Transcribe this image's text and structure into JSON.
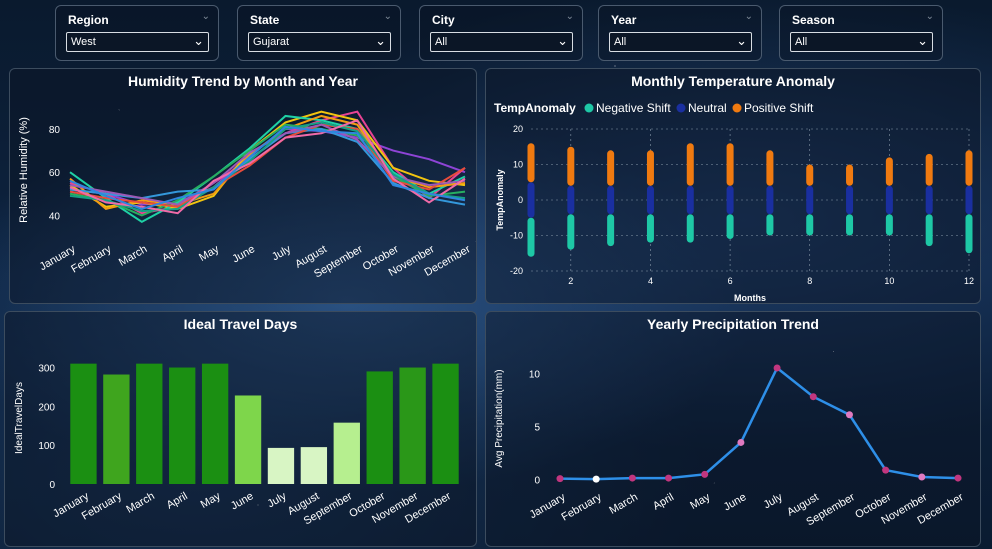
{
  "slicers": [
    {
      "label": "Region",
      "value": "West"
    },
    {
      "label": "State",
      "value": "Gujarat"
    },
    {
      "label": "City",
      "value": "All"
    },
    {
      "label": "Year",
      "value": "All"
    },
    {
      "label": "Season",
      "value": "All"
    }
  ],
  "months": [
    "January",
    "February",
    "March",
    "April",
    "May",
    "June",
    "July",
    "August",
    "September",
    "October",
    "November",
    "December"
  ],
  "colors": {
    "humidity_series": [
      "#8e44d6",
      "#e84393",
      "#f1c40f",
      "#1fd1a5",
      "#f39c12",
      "#27ae60",
      "#3498db",
      "#e74c3c",
      "#9b59b6",
      "#16a085",
      "#f06aa8",
      "#2e86de"
    ],
    "temp_negative": "#1ec8a6",
    "temp_neutral": "#1a2fa0",
    "temp_positive": "#f07a10",
    "bar_colors": [
      "#1b8f12",
      "#3fa51e",
      "#1b8f12",
      "#1b8f12",
      "#1b8f12",
      "#7ed64b",
      "#d8f5c4",
      "#d8f5c4",
      "#b6ef8f",
      "#1b8f12",
      "#2a9718",
      "#1b8f12"
    ],
    "precip_line": "#2e8fe8",
    "precip_points": [
      "#c2367f",
      "#ffffff",
      "#c2367f",
      "#c2367f",
      "#c2367f",
      "#e07ac0",
      "#c2367f",
      "#c2367f",
      "#e07ac0",
      "#c2367f",
      "#e07ac0",
      "#c2367f"
    ]
  },
  "chart_data": [
    {
      "type": "line",
      "title": "Humidity Trend by Month and Year",
      "ylabel": "Relative Humidity (%)",
      "xlabel": "",
      "yticks": [
        40,
        60,
        80
      ],
      "ylim": [
        30,
        92
      ],
      "categories": [
        "January",
        "February",
        "March",
        "April",
        "May",
        "June",
        "July",
        "August",
        "September",
        "October",
        "November",
        "December"
      ],
      "series": [
        {
          "values": [
            52,
            50,
            45,
            46,
            53,
            68,
            80,
            79,
            76,
            70,
            66,
            60
          ]
        },
        {
          "values": [
            55,
            50,
            41,
            44,
            55,
            66,
            78,
            84,
            88,
            62,
            48,
            62
          ]
        },
        {
          "values": [
            54,
            44,
            46,
            43,
            49,
            70,
            83,
            88,
            84,
            62,
            56,
            54
          ]
        },
        {
          "values": [
            60,
            48,
            37,
            46,
            58,
            71,
            86,
            84,
            80,
            60,
            50,
            58
          ]
        },
        {
          "values": [
            57,
            43,
            47,
            45,
            50,
            68,
            80,
            86,
            82,
            58,
            53,
            55
          ]
        },
        {
          "values": [
            50,
            47,
            40,
            47,
            58,
            70,
            82,
            80,
            77,
            58,
            49,
            51
          ]
        },
        {
          "values": [
            52,
            50,
            48,
            51,
            52,
            66,
            78,
            80,
            74,
            55,
            48,
            45
          ]
        },
        {
          "values": [
            51,
            48,
            46,
            44,
            53,
            63,
            76,
            82,
            80,
            56,
            52,
            62
          ]
        },
        {
          "values": [
            54,
            51,
            48,
            45,
            55,
            69,
            78,
            82,
            75,
            58,
            54,
            56
          ]
        },
        {
          "values": [
            49,
            47,
            42,
            43,
            53,
            65,
            80,
            83,
            79,
            59,
            50,
            48
          ]
        },
        {
          "values": [
            53,
            46,
            44,
            41,
            56,
            64,
            76,
            78,
            84,
            57,
            46,
            57
          ]
        },
        {
          "values": [
            56,
            49,
            43,
            48,
            52,
            67,
            81,
            79,
            78,
            54,
            50,
            47
          ]
        }
      ]
    },
    {
      "type": "scatter",
      "title": "Monthly Temperature Anomaly",
      "legend_title": "TempAnomaly",
      "legend": [
        "Negative Shift",
        "Neutral",
        "Positive Shift"
      ],
      "xlabel": "Months",
      "ylabel": "TempAnomaly",
      "xticks": [
        2,
        4,
        6,
        8,
        10,
        12
      ],
      "yticks": [
        -20,
        -10,
        0,
        10,
        20
      ],
      "xlim": [
        1,
        12
      ],
      "ylim": [
        -20,
        20
      ],
      "grid": true,
      "points": [
        {
          "month": 1,
          "neg_min": -16,
          "neu": [
            -5,
            5
          ],
          "pos_max": 16
        },
        {
          "month": 2,
          "neg_min": -14,
          "neu": [
            -4,
            4
          ],
          "pos_max": 15
        },
        {
          "month": 3,
          "neg_min": -13,
          "neu": [
            -4,
            4
          ],
          "pos_max": 14
        },
        {
          "month": 4,
          "neg_min": -12,
          "neu": [
            -4,
            4
          ],
          "pos_max": 14
        },
        {
          "month": 5,
          "neg_min": -12,
          "neu": [
            -4,
            4
          ],
          "pos_max": 16
        },
        {
          "month": 6,
          "neg_min": -11,
          "neu": [
            -4,
            4
          ],
          "pos_max": 16
        },
        {
          "month": 7,
          "neg_min": -10,
          "neu": [
            -4,
            4
          ],
          "pos_max": 14
        },
        {
          "month": 8,
          "neg_min": -10,
          "neu": [
            -4,
            4
          ],
          "pos_max": 10
        },
        {
          "month": 9,
          "neg_min": -10,
          "neu": [
            -4,
            4
          ],
          "pos_max": 10
        },
        {
          "month": 10,
          "neg_min": -10,
          "neu": [
            -4,
            4
          ],
          "pos_max": 12
        },
        {
          "month": 11,
          "neg_min": -13,
          "neu": [
            -4,
            4
          ],
          "pos_max": 13
        },
        {
          "month": 12,
          "neg_min": -15,
          "neu": [
            -4,
            4
          ],
          "pos_max": 14
        }
      ]
    },
    {
      "type": "bar",
      "title": "Ideal Travel Days",
      "ylabel": "IdealTravelDays",
      "xlabel": "",
      "categories": [
        "January",
        "February",
        "March",
        "April",
        "May",
        "June",
        "July",
        "August",
        "September",
        "October",
        "November",
        "December"
      ],
      "values": [
        310,
        282,
        310,
        300,
        310,
        228,
        93,
        95,
        158,
        290,
        300,
        310
      ],
      "yticks": [
        0,
        100,
        200,
        300
      ],
      "ylim": [
        0,
        340
      ]
    },
    {
      "type": "line",
      "title": "Yearly Precipitation Trend",
      "ylabel": "Avg Precipitation(mm)",
      "xlabel": "",
      "categories": [
        "January",
        "February",
        "March",
        "April",
        "May",
        "June",
        "July",
        "August",
        "September",
        "October",
        "November",
        "December"
      ],
      "values": [
        0.1,
        0.05,
        0.15,
        0.15,
        0.5,
        3.5,
        10.5,
        7.8,
        6.1,
        0.9,
        0.25,
        0.15
      ],
      "yticks": [
        0,
        5,
        10
      ],
      "ylim": [
        -0.5,
        12
      ]
    }
  ]
}
